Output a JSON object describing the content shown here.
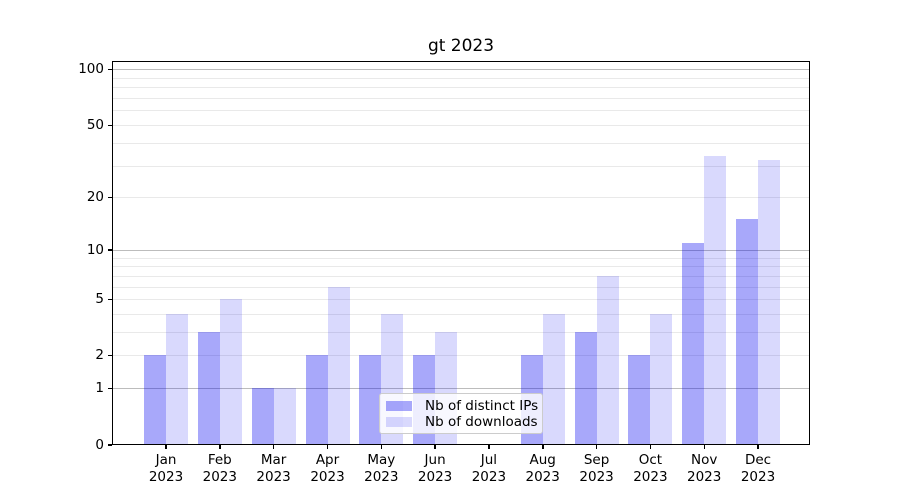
{
  "title": "gt 2023",
  "chart_data": {
    "type": "bar",
    "title": "gt 2023",
    "categories": [
      "Jan 2023",
      "Feb 2023",
      "Mar 2023",
      "Apr 2023",
      "May 2023",
      "Jun 2023",
      "Jul 2023",
      "Aug 2023",
      "Sep 2023",
      "Oct 2023",
      "Nov 2023",
      "Dec 2023"
    ],
    "series": [
      {
        "name": "Nb of distinct IPs",
        "values": [
          2,
          3,
          1,
          2,
          2,
          2,
          0,
          2,
          3,
          2,
          11,
          15
        ],
        "fill": "rgba(0,0,240,0.34)",
        "hex_over_white": "#a8a8f8"
      },
      {
        "name": "Nb of downloads",
        "values": [
          4,
          5,
          1,
          6,
          4,
          3,
          0,
          4,
          7,
          4,
          34,
          32
        ],
        "fill": "rgba(0,0,240,0.15)",
        "hex_over_white": "#d8d8fa"
      }
    ],
    "xlabel": "",
    "ylabel": "",
    "yscale": "log10(1+y)",
    "ylim": [
      0,
      110
    ],
    "ytick_values": [
      0,
      1,
      2,
      5,
      10,
      20,
      50,
      100
    ],
    "major_grid_values": [
      1,
      10,
      100
    ],
    "minor_grid_values": [
      2,
      3,
      4,
      5,
      6,
      7,
      8,
      9,
      20,
      30,
      40,
      50,
      60,
      70,
      80,
      90
    ],
    "grid": true,
    "legend_position": "lower center"
  },
  "colors": {
    "major_gridline": "#bcbcbc",
    "minor_gridline": "#e9e9e9",
    "axis": "#000000",
    "legend_border": "#cccccc"
  }
}
